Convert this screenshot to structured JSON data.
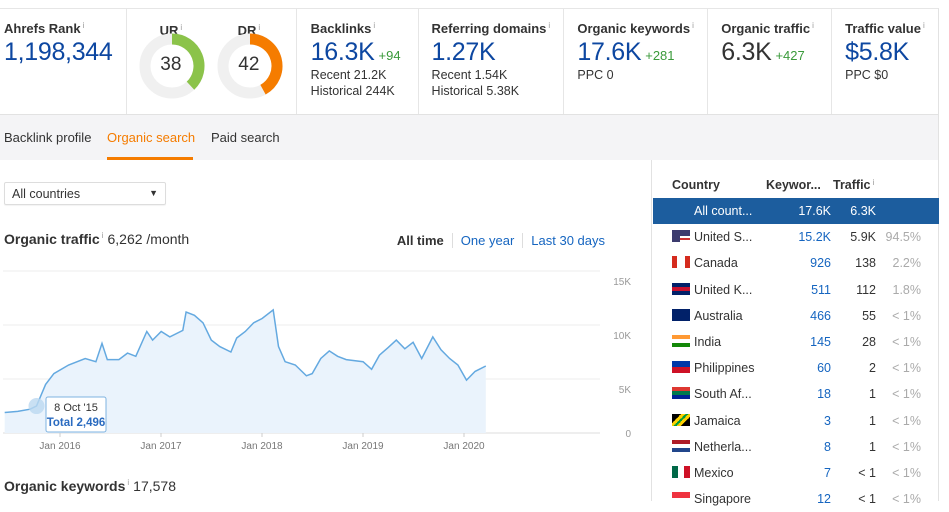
{
  "metrics": {
    "ahrefs_rank": {
      "label": "Ahrefs Rank",
      "value": "1,198,344"
    },
    "ur": {
      "label": "UR",
      "value": "38",
      "score": 38,
      "color": "#8bc34a"
    },
    "dr": {
      "label": "DR",
      "value": "42",
      "score": 42,
      "color": "#f57c00"
    },
    "backlinks": {
      "label": "Backlinks",
      "value": "16.3K",
      "delta": "+94",
      "recent": "Recent 21.2K",
      "historical": "Historical 244K"
    },
    "referring_domains": {
      "label": "Referring domains",
      "value": "1.27K",
      "recent": "Recent 1.54K",
      "historical": "Historical 5.38K"
    },
    "organic_keywords": {
      "label": "Organic keywords",
      "value": "17.6K",
      "delta": "+281",
      "ppc": "PPC 0"
    },
    "organic_traffic": {
      "label": "Organic traffic",
      "value": "6.3K",
      "delta": "+427"
    },
    "traffic_value": {
      "label": "Traffic value",
      "value": "$5.8K",
      "ppc": "PPC $0"
    }
  },
  "tabs": [
    {
      "label": "Backlink profile",
      "active": false
    },
    {
      "label": "Organic search",
      "active": true
    },
    {
      "label": "Paid search",
      "active": false
    }
  ],
  "country_select": {
    "value": "All countries"
  },
  "organic_traffic_section": {
    "title": "Organic traffic",
    "value": "6,262 /month",
    "ranges": [
      "All time",
      "One year",
      "Last 30 days"
    ],
    "selected_range": "All time"
  },
  "organic_keywords_section": {
    "title": "Organic keywords",
    "value": "17,578"
  },
  "chart_data": {
    "type": "area",
    "y_ticks": [
      "0",
      "5K",
      "10K",
      "15K"
    ],
    "ylim": [
      0,
      15000
    ],
    "x_ticks": [
      "Jan 2016",
      "Jan 2017",
      "Jan 2018",
      "Jan 2019",
      "Jan 2020"
    ],
    "grid": true,
    "color": "#64a9e0",
    "tooltip": {
      "date": "8 Oct '15",
      "total": "Total 2,496"
    },
    "points": [
      [
        "2015-06-15",
        1900
      ],
      [
        "2015-08-01",
        2000
      ],
      [
        "2015-09-15",
        2200
      ],
      [
        "2015-10-08",
        2496
      ],
      [
        "2015-11-10",
        4500
      ],
      [
        "2015-12-10",
        5500
      ],
      [
        "2016-02-01",
        6300
      ],
      [
        "2016-04-01",
        6900
      ],
      [
        "2016-05-10",
        6600
      ],
      [
        "2016-06-01",
        8300
      ],
      [
        "2016-06-20",
        6800
      ],
      [
        "2016-08-01",
        6800
      ],
      [
        "2016-09-01",
        7400
      ],
      [
        "2016-10-01",
        7100
      ],
      [
        "2016-11-10",
        9400
      ],
      [
        "2016-12-01",
        8600
      ],
      [
        "2017-01-01",
        9400
      ],
      [
        "2017-02-01",
        8900
      ],
      [
        "2017-03-20",
        9500
      ],
      [
        "2017-04-01",
        11200
      ],
      [
        "2017-05-01",
        10900
      ],
      [
        "2017-06-01",
        10200
      ],
      [
        "2017-07-01",
        8600
      ],
      [
        "2017-08-01",
        8000
      ],
      [
        "2017-09-10",
        7500
      ],
      [
        "2017-10-01",
        8800
      ],
      [
        "2017-11-01",
        9400
      ],
      [
        "2017-12-01",
        10200
      ],
      [
        "2018-01-01",
        10600
      ],
      [
        "2018-02-10",
        11400
      ],
      [
        "2018-03-01",
        8000
      ],
      [
        "2018-03-25",
        6600
      ],
      [
        "2018-05-01",
        6300
      ],
      [
        "2018-06-10",
        5300
      ],
      [
        "2018-07-01",
        5500
      ],
      [
        "2018-08-01",
        6900
      ],
      [
        "2018-09-01",
        7600
      ],
      [
        "2018-10-01",
        7100
      ],
      [
        "2018-11-01",
        6800
      ],
      [
        "2019-01-01",
        6600
      ],
      [
        "2019-02-01",
        5900
      ],
      [
        "2019-03-01",
        7200
      ],
      [
        "2019-04-01",
        7900
      ],
      [
        "2019-05-01",
        8600
      ],
      [
        "2019-06-01",
        7800
      ],
      [
        "2019-07-01",
        8400
      ],
      [
        "2019-08-01",
        6900
      ],
      [
        "2019-09-10",
        8900
      ],
      [
        "2019-10-10",
        7700
      ],
      [
        "2019-11-10",
        6900
      ],
      [
        "2019-12-10",
        6300
      ],
      [
        "2020-01-10",
        4900
      ],
      [
        "2020-02-10",
        5700
      ],
      [
        "2020-03-20",
        6200
      ]
    ]
  },
  "country_table": {
    "headers": {
      "country": "Country",
      "keywords": "Keywor...",
      "traffic": "Traffic"
    },
    "rows": [
      {
        "country": "All count...",
        "keywords": "17.6K",
        "traffic": "6.3K",
        "share": "",
        "selected": true,
        "flag": ""
      },
      {
        "country": "United S...",
        "keywords": "15.2K",
        "traffic": "5.9K",
        "share": "94.5%",
        "flag": "us-flag-icon"
      },
      {
        "country": "Canada",
        "keywords": "926",
        "traffic": "138",
        "share": "2.2%",
        "flag": "canada-flag-icon"
      },
      {
        "country": "United K...",
        "keywords": "511",
        "traffic": "112",
        "share": "1.8%",
        "flag": "uk-flag-icon"
      },
      {
        "country": "Australia",
        "keywords": "466",
        "traffic": "55",
        "share": "< 1%",
        "flag": "australia-flag-icon"
      },
      {
        "country": "India",
        "keywords": "145",
        "traffic": "28",
        "share": "< 1%",
        "flag": "india-flag-icon"
      },
      {
        "country": "Philippines",
        "keywords": "60",
        "traffic": "2",
        "share": "< 1%",
        "flag": "philippines-flag-icon"
      },
      {
        "country": "South Af...",
        "keywords": "18",
        "traffic": "1",
        "share": "< 1%",
        "flag": "south-africa-flag-icon"
      },
      {
        "country": "Jamaica",
        "keywords": "3",
        "traffic": "1",
        "share": "< 1%",
        "flag": "jamaica-flag-icon"
      },
      {
        "country": "Netherla...",
        "keywords": "8",
        "traffic": "1",
        "share": "< 1%",
        "flag": "netherlands-flag-icon"
      },
      {
        "country": "Mexico",
        "keywords": "7",
        "traffic": "< 1",
        "share": "< 1%",
        "flag": "mexico-flag-icon"
      },
      {
        "country": "Singapore",
        "keywords": "12",
        "traffic": "< 1",
        "share": "< 1%",
        "flag": "singapore-flag-icon"
      }
    ]
  }
}
